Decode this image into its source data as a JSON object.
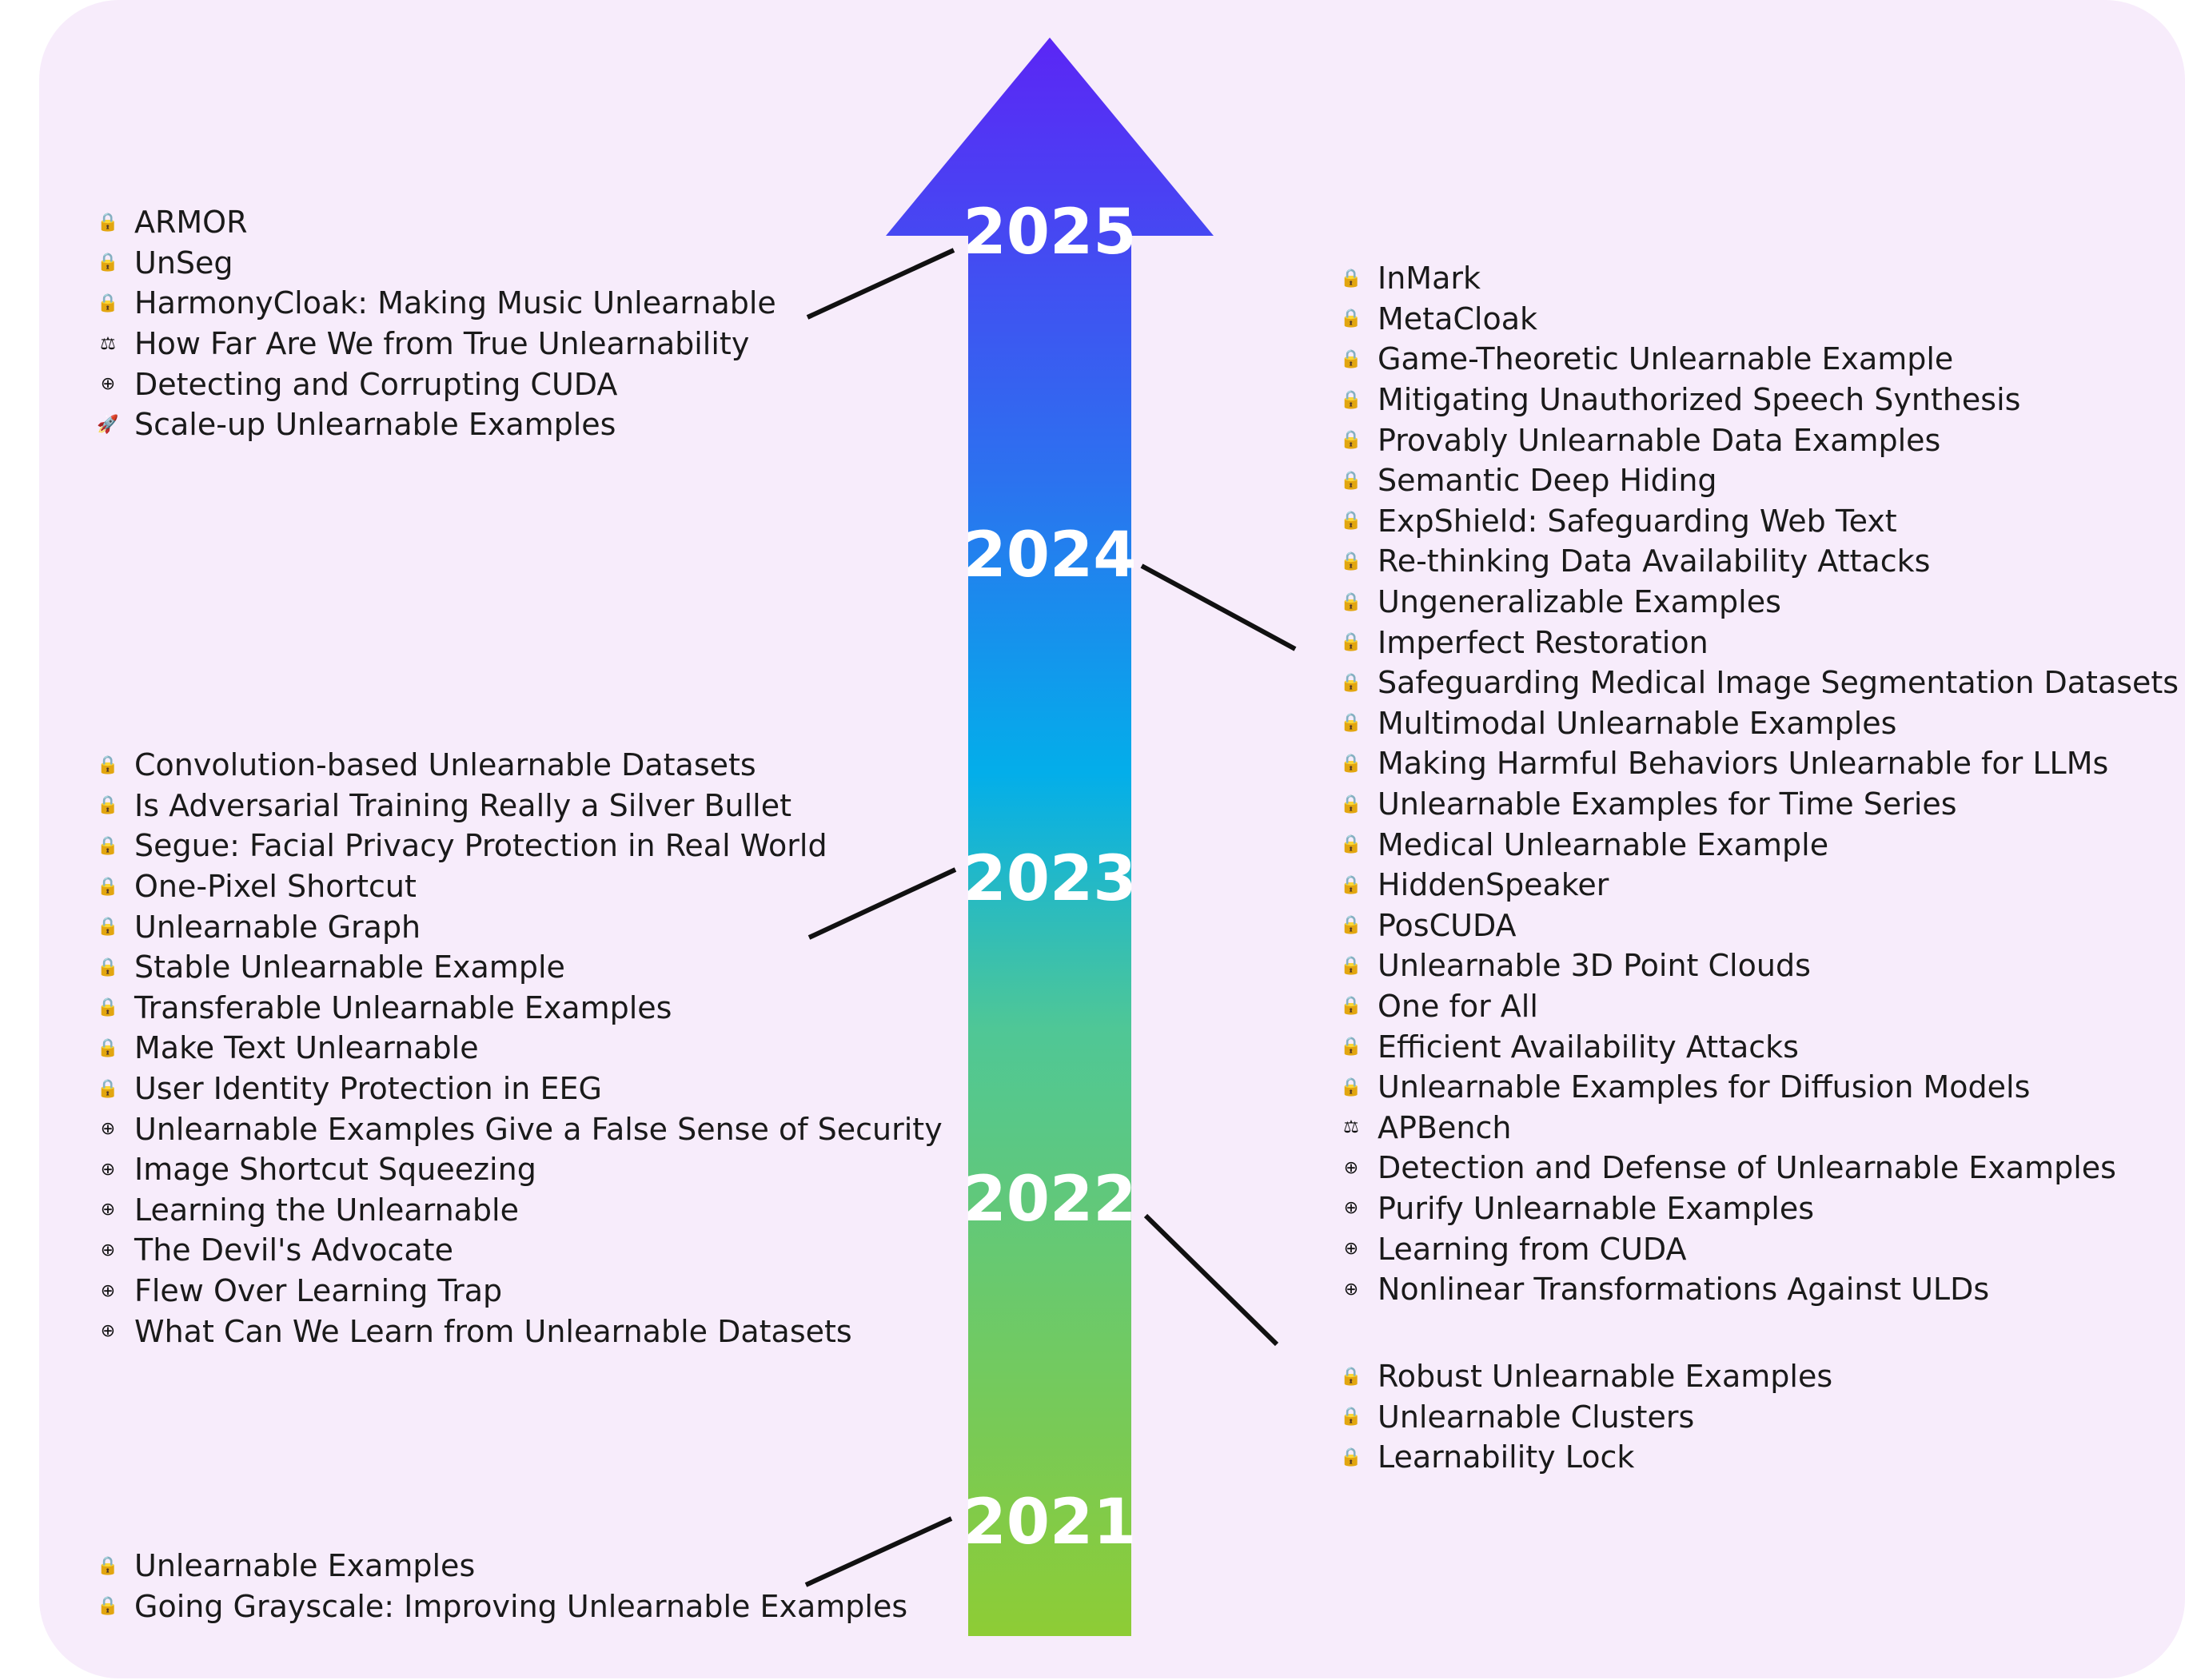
{
  "icons": {
    "lock": "🔒",
    "scales": "⚖",
    "target": "⊕",
    "rocket": "🚀"
  },
  "colors": {
    "panel_background": "#f7ecfb",
    "arrow_top": "#5b26f5",
    "arrow_mid_upper": "#2b73ef",
    "arrow_mid": "#03aeea",
    "arrow_mid_lower": "#4fc796",
    "arrow_bottom": "#8ecc35",
    "connector": "#111111",
    "year_text": "#ffffff"
  },
  "years": [
    "2025",
    "2024",
    "2023",
    "2022",
    "2021"
  ],
  "groups": {
    "g2025": {
      "year": "2025",
      "side": "left",
      "items": [
        {
          "icon": "lock",
          "label": "ARMOR"
        },
        {
          "icon": "lock",
          "label": "UnSeg"
        },
        {
          "icon": "lock",
          "label": "HarmonyCloak: Making Music Unlearnable"
        },
        {
          "icon": "scales",
          "label": "How Far Are We from True Unlearnability"
        },
        {
          "icon": "target",
          "label": "Detecting and Corrupting CUDA"
        },
        {
          "icon": "rocket",
          "label": "Scale-up Unlearnable Examples"
        }
      ]
    },
    "g2024": {
      "year": "2024",
      "side": "right",
      "items": [
        {
          "icon": "lock",
          "label": "InMark"
        },
        {
          "icon": "lock",
          "label": "MetaCloak"
        },
        {
          "icon": "lock",
          "label": "Game-Theoretic Unlearnable Example"
        },
        {
          "icon": "lock",
          "label": "Mitigating Unauthorized Speech Synthesis"
        },
        {
          "icon": "lock",
          "label": "Provably Unlearnable Data Examples"
        },
        {
          "icon": "lock",
          "label": "Semantic Deep Hiding"
        },
        {
          "icon": "lock",
          "label": "ExpShield: Safeguarding Web Text"
        },
        {
          "icon": "lock",
          "label": "Re-thinking Data Availability Attacks"
        },
        {
          "icon": "lock",
          "label": "Ungeneralizable Examples"
        },
        {
          "icon": "lock",
          "label": "Imperfect Restoration"
        },
        {
          "icon": "lock",
          "label": "Safeguarding Medical Image Segmentation Datasets"
        },
        {
          "icon": "lock",
          "label": "Multimodal Unlearnable Examples"
        },
        {
          "icon": "lock",
          "label": "Making Harmful Behaviors Unlearnable for LLMs"
        },
        {
          "icon": "lock",
          "label": "Unlearnable Examples for Time Series"
        },
        {
          "icon": "lock",
          "label": "Medical Unlearnable Example"
        },
        {
          "icon": "lock",
          "label": "HiddenSpeaker"
        },
        {
          "icon": "lock",
          "label": "PosCUDA"
        },
        {
          "icon": "lock",
          "label": "Unlearnable 3D Point Clouds"
        },
        {
          "icon": "lock",
          "label": "One for All"
        },
        {
          "icon": "lock",
          "label": "Efficient Availability Attacks"
        },
        {
          "icon": "lock",
          "label": "Unlearnable Examples for Diffusion Models"
        },
        {
          "icon": "scales",
          "label": "APBench"
        },
        {
          "icon": "target",
          "label": "Detection and Defense of Unlearnable Examples"
        },
        {
          "icon": "target",
          "label": "Purify Unlearnable Examples"
        },
        {
          "icon": "target",
          "label": "Learning from CUDA"
        },
        {
          "icon": "target",
          "label": "Nonlinear Transformations Against ULDs"
        }
      ]
    },
    "g2023": {
      "year": "2023",
      "side": "left",
      "items": [
        {
          "icon": "lock",
          "label": "Convolution-based Unlearnable Datasets"
        },
        {
          "icon": "lock",
          "label": "Is Adversarial Training Really a Silver Bullet"
        },
        {
          "icon": "lock",
          "label": "Segue: Facial Privacy Protection in Real World"
        },
        {
          "icon": "lock",
          "label": "One-Pixel Shortcut"
        },
        {
          "icon": "lock",
          "label": "Unlearnable Graph"
        },
        {
          "icon": "lock",
          "label": "Stable Unlearnable Example"
        },
        {
          "icon": "lock",
          "label": "Transferable Unlearnable Examples"
        },
        {
          "icon": "lock",
          "label": "Make Text Unlearnable"
        },
        {
          "icon": "lock",
          "label": "User Identity Protection in EEG"
        },
        {
          "icon": "target",
          "label": "Unlearnable Examples Give a False Sense of Security"
        },
        {
          "icon": "target",
          "label": "Image Shortcut Squeezing"
        },
        {
          "icon": "target",
          "label": "Learning the Unlearnable"
        },
        {
          "icon": "target",
          "label": "The Devil's Advocate"
        },
        {
          "icon": "target",
          "label": "Flew Over Learning Trap"
        },
        {
          "icon": "target",
          "label": "What Can We Learn from Unlearnable Datasets"
        }
      ]
    },
    "g2022": {
      "year": "2022",
      "side": "right",
      "items": [
        {
          "icon": "lock",
          "label": "Robust Unlearnable Examples"
        },
        {
          "icon": "lock",
          "label": "Unlearnable Clusters"
        },
        {
          "icon": "lock",
          "label": "Learnability Lock"
        }
      ]
    },
    "g2021": {
      "year": "2021",
      "side": "left",
      "items": [
        {
          "icon": "lock",
          "label": "Unlearnable Examples"
        },
        {
          "icon": "lock",
          "label": "Going Grayscale: Improving Unlearnable Examples"
        }
      ]
    }
  }
}
